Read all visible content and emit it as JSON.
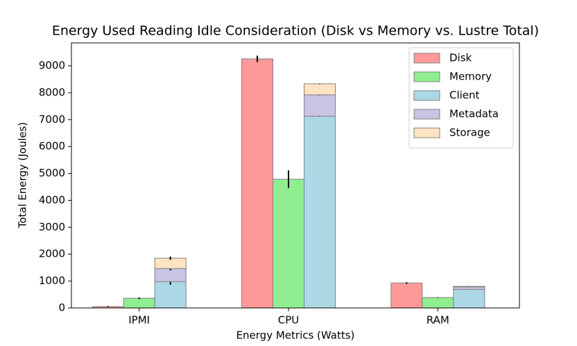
{
  "chart_data": {
    "type": "bar",
    "title": "Energy Used Reading Idle Consideration (Disk vs Memory vs. Lustre Total)",
    "x_label": "Energy Metrics (Watts)",
    "y_label": "Total Energy (Joules)",
    "categories": [
      "IPMI",
      "CPU",
      "RAM"
    ],
    "series": [
      {
        "name": "Disk",
        "color": "#ff9999",
        "values": [
          50,
          9257,
          926
        ],
        "errors": [
          20,
          120,
          30
        ]
      },
      {
        "name": "Memory",
        "color": "#90ee90",
        "values": [
          360,
          4783,
          386
        ],
        "errors": [
          30,
          330,
          10
        ]
      },
      {
        "name": "Client",
        "color": "#add8e6",
        "values": [
          977,
          7123,
          690
        ],
        "errors": [
          115,
          20,
          10
        ]
      },
      {
        "name": "Metadata",
        "color": "#cbc3e3",
        "values": [
          488,
          797,
          90
        ],
        "errors": [
          70,
          20,
          10
        ],
        "stacked": true
      },
      {
        "name": "Storage",
        "color": "#ffe4c4",
        "values": [
          385,
          411,
          20
        ],
        "errors": [
          60,
          10,
          5
        ],
        "stacked": true
      }
    ],
    "ylim": [
      0,
      9850
    ],
    "yticks": [
      0,
      1000,
      2000,
      3000,
      4000,
      5000,
      6000,
      7000,
      8000,
      9000
    ],
    "grid": false,
    "legend": "upper right"
  }
}
